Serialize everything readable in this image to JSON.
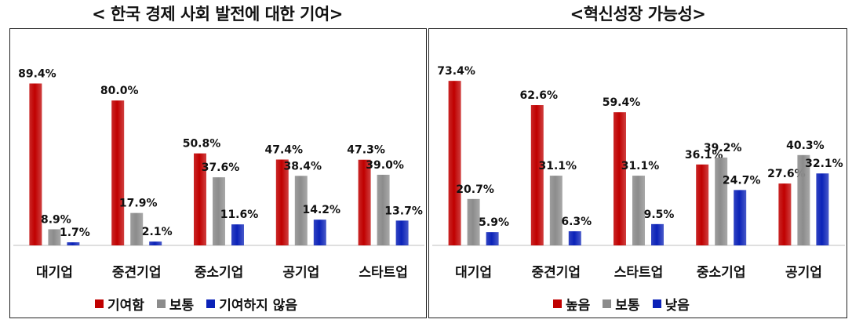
{
  "titles": {
    "left": "< 한국 경제 사회 발전에 대한 기여>",
    "right": "<혁신성장 가능성>"
  },
  "colors": {
    "red": "#c00000",
    "gray": "#8c8c8c",
    "blue": "#0b22b8"
  },
  "chart_data": [
    {
      "type": "bar",
      "title": "< 한국 경제 사회 발전에 대한 기여>",
      "categories": [
        "대기업",
        "중견기업",
        "중소기업",
        "공기업",
        "스타트업"
      ],
      "series": [
        {
          "name": "기여함",
          "color": "red",
          "values": [
            89.4,
            80.0,
            50.8,
            47.4,
            47.3
          ]
        },
        {
          "name": "보통",
          "color": "gray",
          "values": [
            8.9,
            17.9,
            37.6,
            38.4,
            39.0
          ]
        },
        {
          "name": "기여하지 않음",
          "color": "blue",
          "values": [
            1.7,
            2.1,
            11.6,
            14.2,
            13.7
          ]
        }
      ],
      "value_suffix": "%",
      "ylim": [
        0,
        100
      ],
      "grid": false,
      "legend": "bottom"
    },
    {
      "type": "bar",
      "title": "<혁신성장 가능성>",
      "categories": [
        "대기업",
        "중견기업",
        "스타트업",
        "중소기업",
        "공기업"
      ],
      "series": [
        {
          "name": "높음",
          "color": "red",
          "values": [
            73.4,
            62.6,
            59.4,
            36.1,
            27.6
          ]
        },
        {
          "name": "보통",
          "color": "gray",
          "values": [
            20.7,
            31.1,
            31.1,
            39.2,
            40.3
          ]
        },
        {
          "name": "낮음",
          "color": "blue",
          "values": [
            5.9,
            6.3,
            9.5,
            24.7,
            32.1
          ]
        }
      ],
      "value_suffix": "%",
      "ylim": [
        0,
        85
      ],
      "grid": false,
      "legend": "bottom"
    }
  ]
}
